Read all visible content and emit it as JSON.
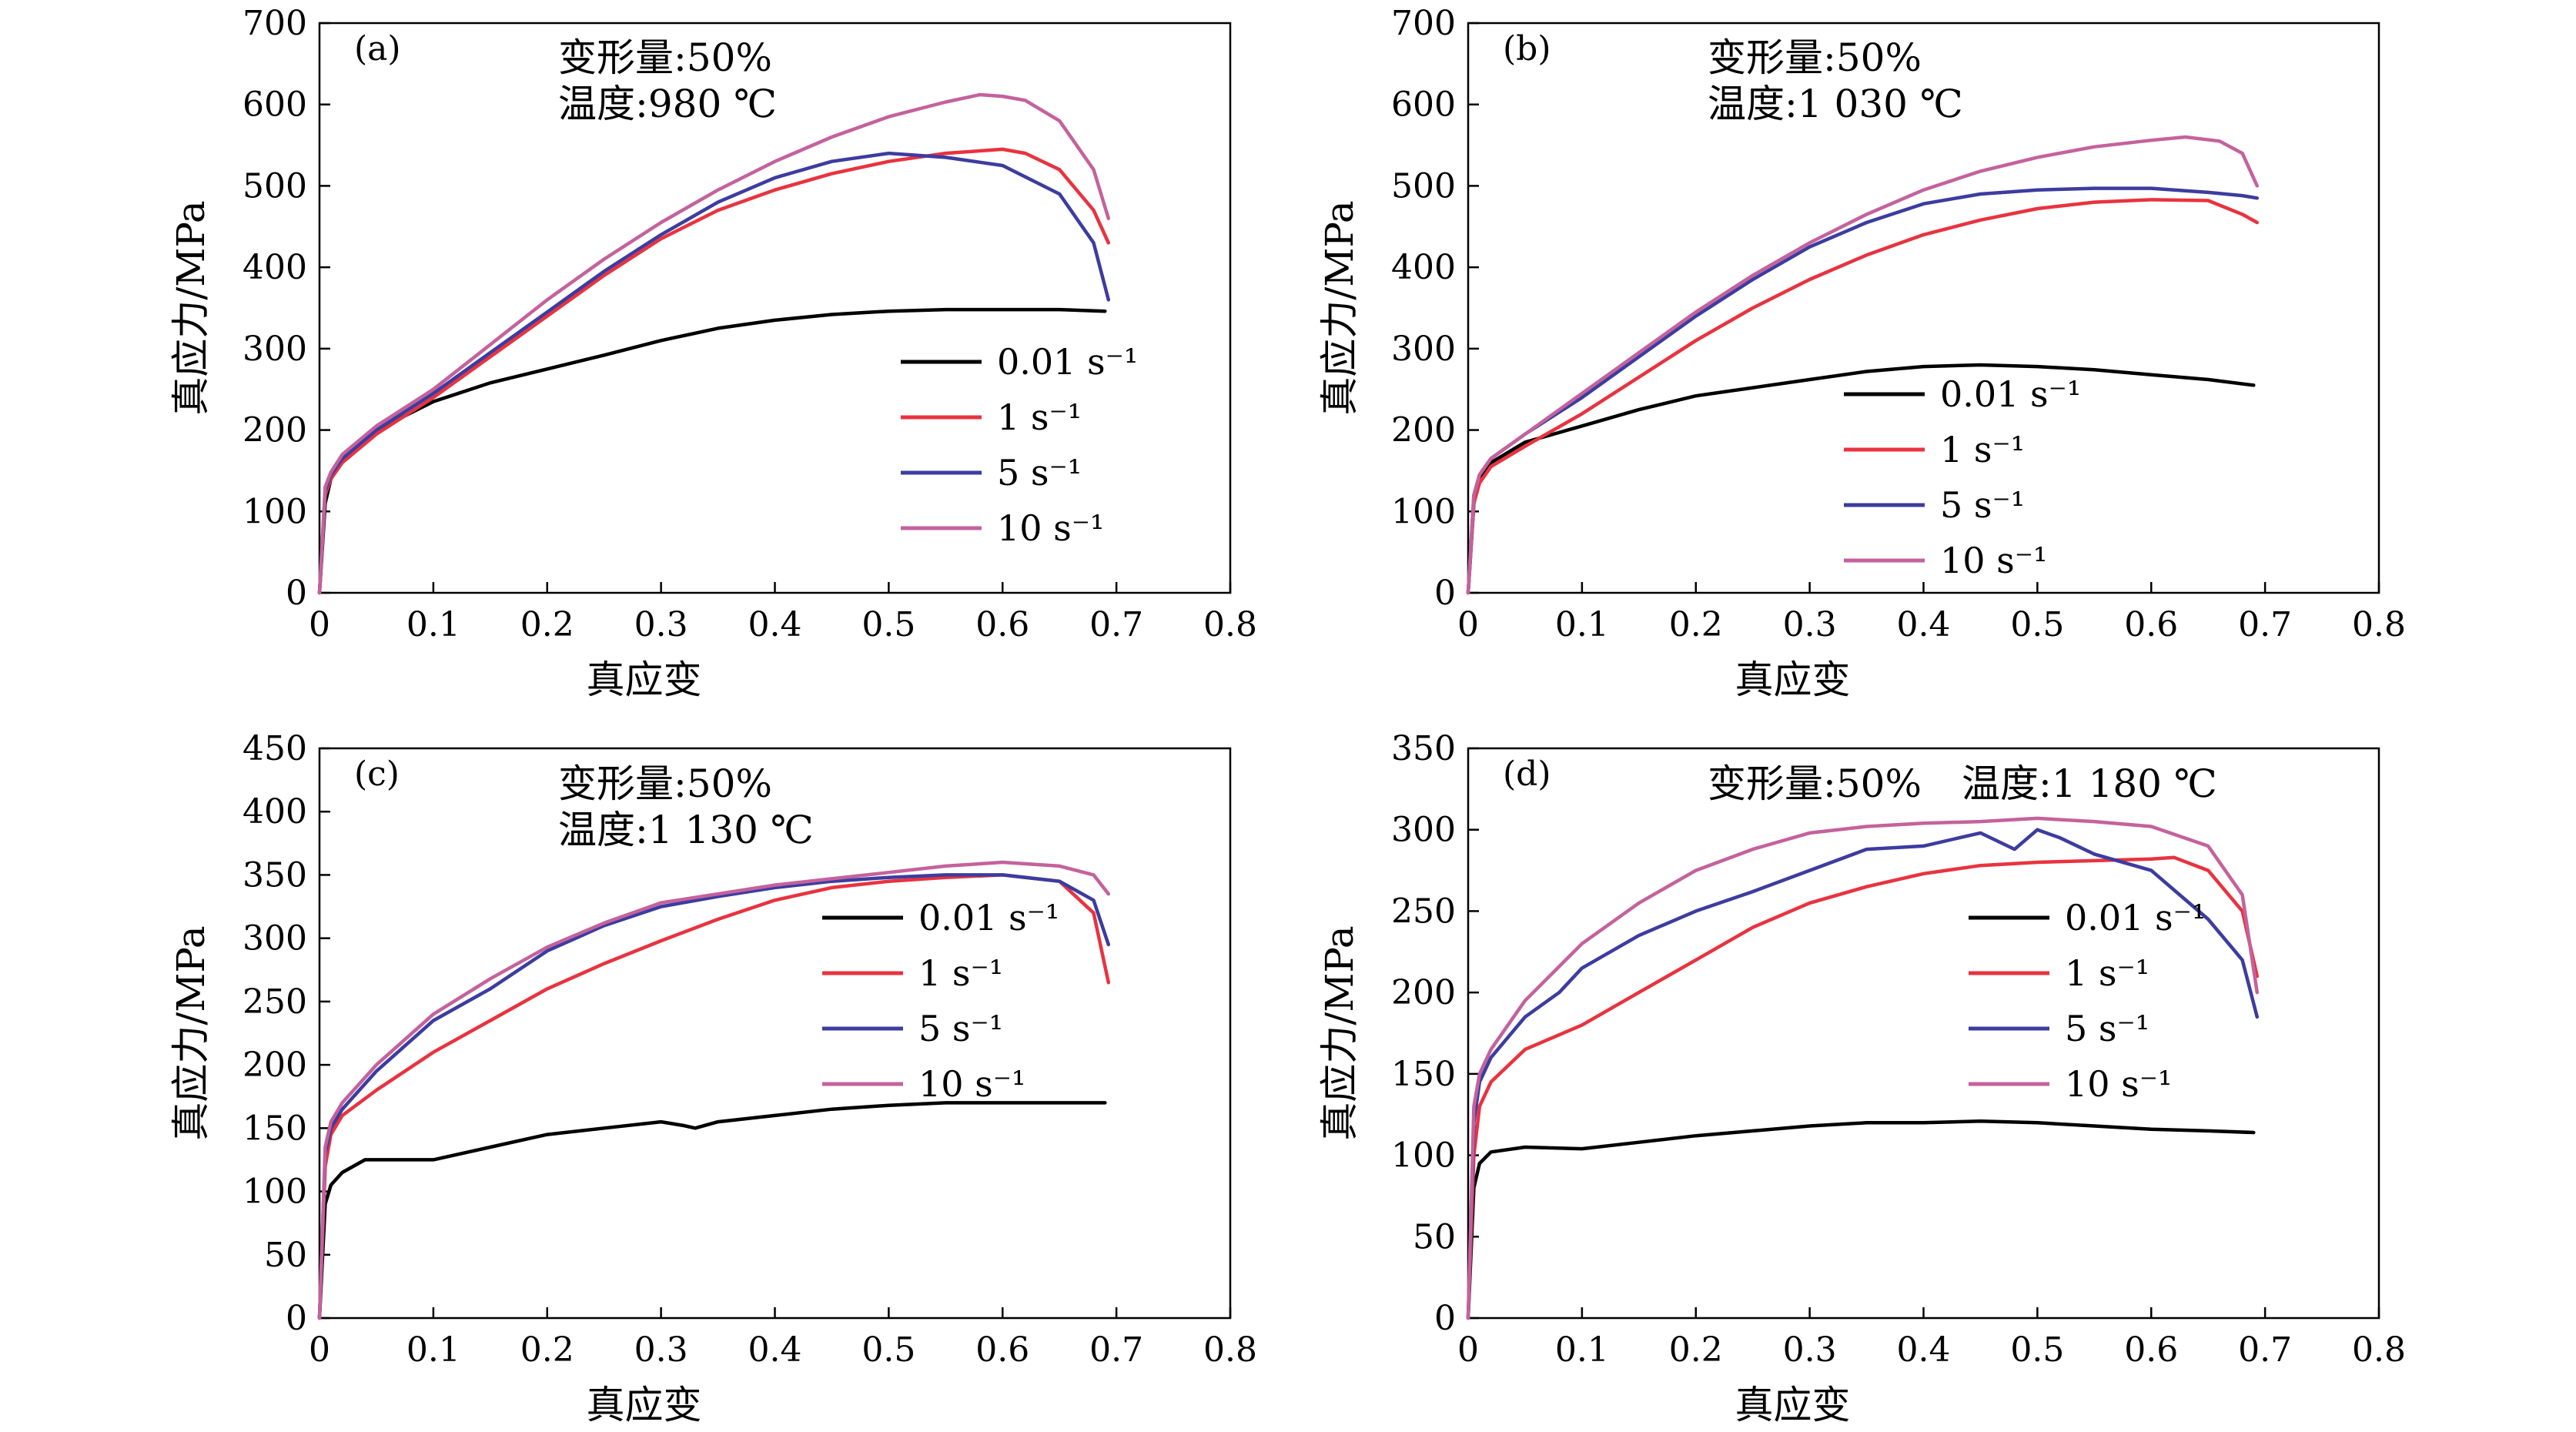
{
  "chart_data": [
    {
      "type": "line",
      "panel_label": "(a)",
      "annotations": [
        "变形量:50%",
        "温度:980 ℃"
      ],
      "xlabel": "真应变",
      "ylabel": "真应力/MPa",
      "xlim": [
        0,
        0.8
      ],
      "ylim": [
        0,
        700
      ],
      "xticks": [
        "0",
        "0.1",
        "0.2",
        "0.3",
        "0.4",
        "0.5",
        "0.6",
        "0.7",
        "0.8"
      ],
      "yticks": [
        "0",
        "100",
        "200",
        "300",
        "400",
        "500",
        "600",
        "700"
      ],
      "legend_position": "center-right",
      "series": [
        {
          "name": "0.01 s⁻¹",
          "color": "#000000",
          "x": [
            0,
            0.005,
            0.01,
            0.02,
            0.05,
            0.1,
            0.15,
            0.2,
            0.25,
            0.3,
            0.35,
            0.4,
            0.45,
            0.5,
            0.55,
            0.6,
            0.65,
            0.69
          ],
          "y": [
            0,
            110,
            140,
            165,
            200,
            235,
            258,
            275,
            292,
            310,
            325,
            335,
            342,
            346,
            348,
            348,
            348,
            346
          ]
        },
        {
          "name": "1 s⁻¹",
          "color": "#e8333f",
          "x": [
            0,
            0.005,
            0.01,
            0.02,
            0.05,
            0.1,
            0.15,
            0.2,
            0.25,
            0.3,
            0.35,
            0.4,
            0.45,
            0.5,
            0.55,
            0.6,
            0.62,
            0.65,
            0.68,
            0.693
          ],
          "y": [
            0,
            120,
            140,
            160,
            195,
            240,
            290,
            340,
            390,
            435,
            470,
            495,
            515,
            530,
            540,
            545,
            540,
            520,
            470,
            430
          ]
        },
        {
          "name": "5 s⁻¹",
          "color": "#3c3ca0",
          "x": [
            0,
            0.005,
            0.01,
            0.02,
            0.05,
            0.1,
            0.15,
            0.2,
            0.25,
            0.3,
            0.35,
            0.4,
            0.45,
            0.5,
            0.55,
            0.6,
            0.65,
            0.68,
            0.693
          ],
          "y": [
            0,
            125,
            145,
            165,
            200,
            245,
            295,
            345,
            395,
            440,
            480,
            510,
            530,
            540,
            535,
            525,
            490,
            430,
            360
          ]
        },
        {
          "name": "10 s⁻¹",
          "color": "#c4629c",
          "x": [
            0,
            0.005,
            0.01,
            0.02,
            0.05,
            0.1,
            0.15,
            0.2,
            0.25,
            0.3,
            0.35,
            0.4,
            0.45,
            0.5,
            0.55,
            0.58,
            0.6,
            0.62,
            0.65,
            0.68,
            0.693
          ],
          "y": [
            0,
            130,
            148,
            170,
            205,
            250,
            305,
            360,
            410,
            455,
            495,
            530,
            560,
            585,
            603,
            612,
            610,
            605,
            580,
            520,
            460
          ]
        }
      ]
    },
    {
      "type": "line",
      "panel_label": "(b)",
      "annotations": [
        "变形量:50%",
        "温度:1 030 ℃"
      ],
      "xlabel": "真应变",
      "ylabel": "真应力/MPa",
      "xlim": [
        0,
        0.8
      ],
      "ylim": [
        0,
        700
      ],
      "xticks": [
        "0",
        "0.1",
        "0.2",
        "0.3",
        "0.4",
        "0.5",
        "0.6",
        "0.7",
        "0.8"
      ],
      "yticks": [
        "0",
        "100",
        "200",
        "300",
        "400",
        "500",
        "600",
        "700"
      ],
      "legend_position": "center",
      "series": [
        {
          "name": "0.01 s⁻¹",
          "color": "#000000",
          "x": [
            0,
            0.005,
            0.01,
            0.02,
            0.05,
            0.1,
            0.15,
            0.2,
            0.25,
            0.3,
            0.35,
            0.4,
            0.45,
            0.5,
            0.55,
            0.6,
            0.65,
            0.69
          ],
          "y": [
            0,
            110,
            140,
            160,
            185,
            205,
            225,
            242,
            252,
            262,
            272,
            278,
            280,
            278,
            274,
            268,
            262,
            255
          ]
        },
        {
          "name": "1 s⁻¹",
          "color": "#e8333f",
          "x": [
            0,
            0.005,
            0.01,
            0.02,
            0.05,
            0.1,
            0.15,
            0.2,
            0.25,
            0.3,
            0.35,
            0.4,
            0.45,
            0.5,
            0.55,
            0.6,
            0.65,
            0.68,
            0.693
          ],
          "y": [
            0,
            110,
            135,
            155,
            180,
            220,
            265,
            310,
            350,
            385,
            415,
            440,
            458,
            472,
            480,
            483,
            482,
            465,
            455
          ]
        },
        {
          "name": "5 s⁻¹",
          "color": "#3c3ca0",
          "x": [
            0,
            0.005,
            0.01,
            0.02,
            0.05,
            0.1,
            0.15,
            0.2,
            0.25,
            0.3,
            0.35,
            0.4,
            0.45,
            0.5,
            0.55,
            0.6,
            0.65,
            0.68,
            0.693
          ],
          "y": [
            0,
            120,
            145,
            165,
            195,
            240,
            290,
            340,
            385,
            425,
            455,
            478,
            490,
            495,
            497,
            497,
            492,
            488,
            485
          ]
        },
        {
          "name": "10 s⁻¹",
          "color": "#c4629c",
          "x": [
            0,
            0.005,
            0.01,
            0.02,
            0.05,
            0.1,
            0.15,
            0.2,
            0.25,
            0.3,
            0.35,
            0.4,
            0.45,
            0.5,
            0.55,
            0.6,
            0.63,
            0.66,
            0.68,
            0.693
          ],
          "y": [
            0,
            120,
            145,
            165,
            195,
            245,
            295,
            345,
            390,
            430,
            465,
            495,
            518,
            535,
            548,
            556,
            560,
            555,
            540,
            500
          ]
        }
      ]
    },
    {
      "type": "line",
      "panel_label": "(c)",
      "annotations": [
        "变形量:50%",
        "温度:1 130 ℃"
      ],
      "xlabel": "真应变",
      "ylabel": "真应力/MPa",
      "xlim": [
        0,
        0.8
      ],
      "ylim": [
        0,
        450
      ],
      "xticks": [
        "0",
        "0.1",
        "0.2",
        "0.3",
        "0.4",
        "0.5",
        "0.6",
        "0.7",
        "0.8"
      ],
      "yticks": [
        "0",
        "50",
        "100",
        "150",
        "200",
        "250",
        "300",
        "350",
        "400",
        "450"
      ],
      "legend_position": "center-right",
      "series": [
        {
          "name": "0.01 s⁻¹",
          "color": "#000000",
          "x": [
            0,
            0.005,
            0.01,
            0.02,
            0.04,
            0.1,
            0.15,
            0.2,
            0.25,
            0.3,
            0.32,
            0.33,
            0.35,
            0.4,
            0.45,
            0.5,
            0.55,
            0.6,
            0.65,
            0.69
          ],
          "y": [
            0,
            90,
            105,
            115,
            125,
            125,
            135,
            145,
            150,
            155,
            152,
            150,
            155,
            160,
            165,
            168,
            170,
            170,
            170,
            170
          ]
        },
        {
          "name": "1 s⁻¹",
          "color": "#e8333f",
          "x": [
            0,
            0.005,
            0.01,
            0.02,
            0.05,
            0.1,
            0.15,
            0.2,
            0.25,
            0.3,
            0.35,
            0.4,
            0.45,
            0.5,
            0.55,
            0.6,
            0.65,
            0.68,
            0.693
          ],
          "y": [
            0,
            120,
            145,
            160,
            180,
            210,
            235,
            260,
            280,
            298,
            315,
            330,
            340,
            345,
            348,
            350,
            345,
            320,
            265
          ]
        },
        {
          "name": "5 s⁻¹",
          "color": "#3c3ca0",
          "x": [
            0,
            0.005,
            0.01,
            0.02,
            0.05,
            0.1,
            0.15,
            0.2,
            0.25,
            0.3,
            0.35,
            0.4,
            0.45,
            0.5,
            0.55,
            0.6,
            0.65,
            0.68,
            0.693
          ],
          "y": [
            0,
            130,
            150,
            165,
            195,
            235,
            260,
            290,
            310,
            325,
            333,
            340,
            345,
            348,
            350,
            350,
            345,
            330,
            295
          ]
        },
        {
          "name": "10 s⁻¹",
          "color": "#c4629c",
          "x": [
            0,
            0.005,
            0.01,
            0.02,
            0.05,
            0.1,
            0.15,
            0.2,
            0.25,
            0.3,
            0.35,
            0.4,
            0.45,
            0.5,
            0.55,
            0.6,
            0.65,
            0.68,
            0.693
          ],
          "y": [
            0,
            135,
            155,
            170,
            200,
            240,
            268,
            293,
            312,
            328,
            335,
            342,
            347,
            352,
            357,
            360,
            357,
            350,
            335
          ]
        }
      ]
    },
    {
      "type": "line",
      "panel_label": "(d)",
      "annotations": [
        "变形量:50%",
        "温度:1 180 ℃"
      ],
      "xlabel": "真应变",
      "ylabel": "真应力/MPa",
      "xlim": [
        0,
        0.8
      ],
      "ylim": [
        0,
        350
      ],
      "xticks": [
        "0",
        "0.1",
        "0.2",
        "0.3",
        "0.4",
        "0.5",
        "0.6",
        "0.7",
        "0.8"
      ],
      "yticks": [
        "0",
        "50",
        "100",
        "150",
        "200",
        "250",
        "300",
        "350"
      ],
      "legend_position": "center-right",
      "series": [
        {
          "name": "0.01 s⁻¹",
          "color": "#000000",
          "x": [
            0,
            0.005,
            0.01,
            0.02,
            0.05,
            0.1,
            0.15,
            0.2,
            0.25,
            0.3,
            0.35,
            0.4,
            0.45,
            0.5,
            0.55,
            0.6,
            0.65,
            0.69
          ],
          "y": [
            0,
            80,
            95,
            102,
            105,
            104,
            108,
            112,
            115,
            118,
            120,
            120,
            121,
            120,
            118,
            116,
            115,
            114
          ]
        },
        {
          "name": "1 s⁻¹",
          "color": "#e8333f",
          "x": [
            0,
            0.005,
            0.01,
            0.02,
            0.05,
            0.1,
            0.15,
            0.2,
            0.25,
            0.3,
            0.35,
            0.4,
            0.45,
            0.5,
            0.55,
            0.6,
            0.62,
            0.65,
            0.68,
            0.693
          ],
          "y": [
            0,
            100,
            130,
            145,
            165,
            180,
            200,
            220,
            240,
            255,
            265,
            273,
            278,
            280,
            281,
            282,
            283,
            275,
            250,
            210
          ]
        },
        {
          "name": "5 s⁻¹",
          "color": "#3c3ca0",
          "x": [
            0,
            0.005,
            0.01,
            0.02,
            0.05,
            0.08,
            0.1,
            0.15,
            0.2,
            0.25,
            0.3,
            0.35,
            0.4,
            0.45,
            0.48,
            0.5,
            0.52,
            0.55,
            0.6,
            0.65,
            0.68,
            0.693
          ],
          "y": [
            0,
            120,
            145,
            160,
            185,
            200,
            215,
            235,
            250,
            262,
            275,
            288,
            290,
            298,
            288,
            300,
            295,
            285,
            275,
            245,
            220,
            185
          ]
        },
        {
          "name": "10 s⁻¹",
          "color": "#c4629c",
          "x": [
            0,
            0.005,
            0.01,
            0.02,
            0.05,
            0.1,
            0.15,
            0.2,
            0.25,
            0.3,
            0.35,
            0.4,
            0.45,
            0.5,
            0.55,
            0.6,
            0.65,
            0.68,
            0.693
          ],
          "y": [
            0,
            130,
            150,
            165,
            195,
            230,
            255,
            275,
            288,
            298,
            302,
            304,
            305,
            307,
            305,
            302,
            290,
            260,
            200
          ]
        }
      ]
    }
  ]
}
